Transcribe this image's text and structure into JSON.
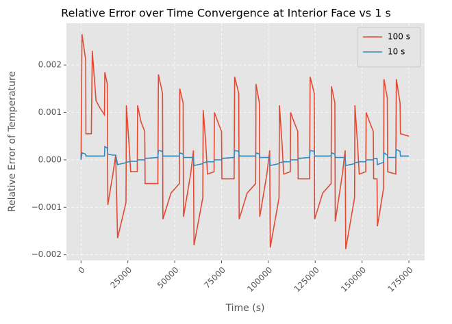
{
  "chart_data": {
    "type": "line",
    "title": "Relative Error over Time Convergence at Interior Face vs 1 s",
    "xlabel": "Time (s)",
    "ylabel": "Relative Error of Temperature",
    "x": [
      0,
      500,
      2500,
      2600,
      5500,
      6000,
      8000,
      10000,
      12500,
      12700,
      14000,
      14300,
      17000,
      18500,
      19500,
      24000,
      24200,
      25500,
      26500,
      30000,
      30200,
      32000,
      34000,
      34200,
      41000,
      41300,
      43500,
      43700,
      48000,
      52500,
      52700,
      54500,
      54700,
      58500,
      60000,
      60300,
      65000,
      65200,
      66500,
      67500,
      71000,
      71200,
      73000,
      75000,
      75200,
      81700,
      82000,
      84200,
      84400,
      88700,
      93200,
      93400,
      95200,
      95400,
      99200,
      100700,
      101000,
      105700,
      105900,
      107200,
      108200,
      111700,
      111900,
      113700,
      115700,
      115900,
      122000,
      122300,
      124500,
      124700,
      129000,
      133500,
      133700,
      135500,
      135700,
      139500,
      141000,
      141300,
      146000,
      146200,
      147500,
      148500,
      152000,
      152200,
      154000,
      156000,
      156200,
      158000,
      158200,
      161500,
      161700,
      163500,
      163700,
      168000,
      168300,
      170300,
      170500,
      175000
    ],
    "series": [
      {
        "name": "100 s",
        "color": "#E24A33",
        "values": [
          0,
          0.00265,
          0.0021,
          0.00055,
          0.00055,
          0.0023,
          0.00125,
          0.0011,
          0.00095,
          0.00185,
          0.0016,
          -0.00095,
          -0.0003,
          0.0001,
          -0.00165,
          -0.0009,
          0.00115,
          0.0004,
          -0.00025,
          -0.00025,
          0.00115,
          0.0008,
          0.0006,
          -0.0005,
          -0.0005,
          0.0018,
          0.0014,
          -0.00125,
          -0.0007,
          -0.0005,
          0.0015,
          0.0012,
          -0.0012,
          -0.0003,
          0.0002,
          -0.0018,
          -0.0008,
          0.00105,
          0.0004,
          -0.0003,
          -0.00025,
          0.001,
          0.0008,
          0.0006,
          -0.0004,
          -0.0004,
          0.00175,
          0.0014,
          -0.00125,
          -0.0007,
          -0.0005,
          0.0016,
          0.0012,
          -0.0012,
          -0.0003,
          0.0002,
          -0.00185,
          -0.0008,
          0.00115,
          0.0004,
          -0.0003,
          -0.00025,
          0.001,
          0.0008,
          0.0006,
          -0.0004,
          -0.0004,
          0.00175,
          0.0014,
          -0.00125,
          -0.0007,
          -0.0005,
          0.00155,
          0.0012,
          -0.0013,
          -0.0003,
          0.0002,
          -0.00188,
          -0.0008,
          0.00115,
          0.0004,
          -0.0003,
          -0.00025,
          0.001,
          0.0008,
          0.0006,
          -0.0004,
          -0.0004,
          -0.0014,
          -0.0006,
          0.0017,
          0.0013,
          -0.00025,
          -0.0003,
          0.0017,
          0.0012,
          0.00055,
          0.0005
        ]
      },
      {
        "name": "10 s",
        "color": "#348ABD",
        "values": [
          0,
          0.00015,
          0.00012,
          8e-05,
          8e-05,
          8e-05,
          8e-05,
          8e-05,
          8e-05,
          0.00028,
          0.00025,
          0.00012,
          0.0001,
          0.0001,
          -0.0001,
          -6e-05,
          -5e-05,
          -4e-05,
          -3e-05,
          -3e-05,
          0,
          0,
          0,
          3e-05,
          5e-05,
          0.0002,
          0.00018,
          8e-05,
          8e-05,
          8e-05,
          0.00015,
          0.00012,
          5e-05,
          5e-05,
          5e-05,
          -0.00012,
          -8e-05,
          -6e-05,
          -5e-05,
          -4e-05,
          -4e-05,
          0,
          0,
          0,
          3e-05,
          5e-05,
          0.0002,
          0.00018,
          8e-05,
          8e-05,
          8e-05,
          0.00015,
          0.00012,
          5e-05,
          5e-05,
          5e-05,
          -0.00012,
          -8e-05,
          -6e-05,
          -5e-05,
          -4e-05,
          -4e-05,
          0,
          0,
          0,
          3e-05,
          5e-05,
          0.0002,
          0.00018,
          8e-05,
          8e-05,
          8e-05,
          0.00015,
          0.00012,
          5e-05,
          5e-05,
          5e-05,
          -0.00012,
          -8e-05,
          -6e-05,
          -5e-05,
          -4e-05,
          -4e-05,
          0,
          0,
          0,
          3e-05,
          3e-05,
          -0.0001,
          -5e-05,
          0.00015,
          0.0001,
          5e-05,
          5e-05,
          0.00022,
          0.00018,
          8e-05,
          8e-05
        ]
      }
    ],
    "xlim": [
      -7800,
      183400
    ],
    "xticks": [
      0,
      25000,
      50000,
      75000,
      100000,
      125000,
      150000,
      175000
    ],
    "ylim": [
      -0.00212,
      0.00288
    ],
    "yticks": [
      {
        "value": -0.002,
        "label": "−0.002"
      },
      {
        "value": -0.001,
        "label": "−0.001"
      },
      {
        "value": 0,
        "label": "0.000"
      },
      {
        "value": 0.001,
        "label": "0.001"
      },
      {
        "value": 0.002,
        "label": "0.002"
      }
    ],
    "grid": true,
    "legend": "upper right"
  }
}
